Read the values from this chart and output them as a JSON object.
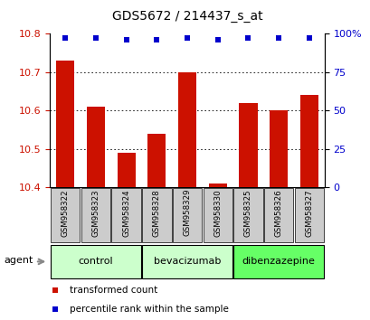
{
  "title": "GDS5672 / 214437_s_at",
  "samples": [
    "GSM958322",
    "GSM958323",
    "GSM958324",
    "GSM958328",
    "GSM958329",
    "GSM958330",
    "GSM958325",
    "GSM958326",
    "GSM958327"
  ],
  "bar_values": [
    10.73,
    10.61,
    10.49,
    10.54,
    10.7,
    10.41,
    10.62,
    10.6,
    10.64
  ],
  "percentile_values": [
    97,
    97,
    96,
    96,
    97,
    96,
    97,
    97,
    97
  ],
  "ylim": [
    10.4,
    10.8
  ],
  "yticks_left": [
    10.4,
    10.5,
    10.6,
    10.7,
    10.8
  ],
  "yticks_right": [
    0,
    25,
    50,
    75,
    100
  ],
  "bar_color": "#cc1100",
  "dot_color": "#0000cc",
  "groups": [
    {
      "label": "control",
      "start": 0,
      "end": 2,
      "color": "#ccffcc"
    },
    {
      "label": "bevacizumab",
      "start": 3,
      "end": 5,
      "color": "#ccffcc"
    },
    {
      "label": "dibenzazepine",
      "start": 6,
      "end": 8,
      "color": "#66ff66"
    }
  ],
  "agent_label": "agent",
  "legend_bar_label": "transformed count",
  "legend_dot_label": "percentile rank within the sample",
  "grid_color": "#000000",
  "bg_color": "#ffffff",
  "tick_label_color_left": "#cc1100",
  "tick_label_color_right": "#0000cc",
  "sample_box_color": "#cccccc",
  "grid_yticks": [
    10.5,
    10.6,
    10.7
  ]
}
